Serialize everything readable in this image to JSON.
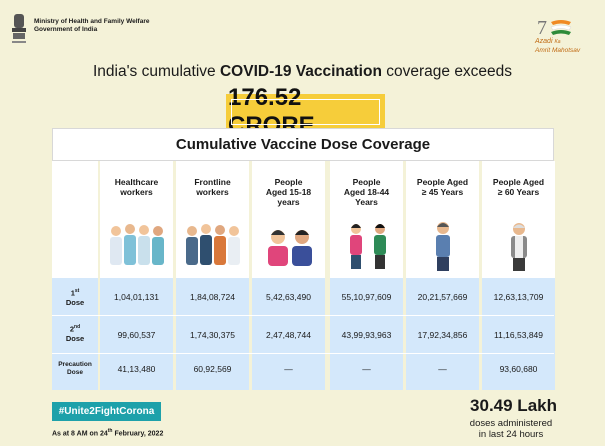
{
  "header": {
    "ministry_line1": "Ministry of Health and Family Welfare",
    "ministry_line2": "Government of India",
    "azadi_line1": "Azadi",
    "azadi_line2": "Ka",
    "azadi_line3": "Amrit Mahotsav"
  },
  "headline": {
    "prefix": "India's cumulative ",
    "bold": "COVID-19 Vaccination",
    "suffix": " coverage exceeds"
  },
  "total": "176.52 CRORE",
  "table": {
    "title": "Cumulative Vaccine Dose Coverage",
    "row_labels": {
      "first": "1",
      "first_sup": "st",
      "second": "2",
      "second_sup": "nd",
      "dose_word": "Dose",
      "precaution": "Precaution",
      "precaution_dose": "Dose"
    },
    "columns": [
      {
        "line1": "Healthcare",
        "line2": "workers",
        "line3": "",
        "first": "1,04,01,131",
        "second": "99,60,537",
        "precaution": "41,13,480"
      },
      {
        "line1": "Frontline",
        "line2": "workers",
        "line3": "",
        "first": "1,84,08,724",
        "second": "1,74,30,375",
        "precaution": "60,92,569"
      },
      {
        "line1": "People",
        "line2": "Aged 15-18",
        "line3": "years",
        "first": "5,42,63,490",
        "second": "2,47,48,744",
        "precaution": "—"
      },
      {
        "line1": "People",
        "line2": "Aged 18-44",
        "line3": "Years",
        "first": "55,10,97,609",
        "second": "43,99,93,963",
        "precaution": "—"
      },
      {
        "line1": "People Aged",
        "line2": "≥ 45 Years",
        "line3": "",
        "first": "20,21,57,669",
        "second": "17,92,34,856",
        "precaution": "—"
      },
      {
        "line1": "People Aged",
        "line2": "≥ 60 Years",
        "line3": "",
        "first": "12,63,13,709",
        "second": "11,16,53,849",
        "precaution": "93,60,680"
      }
    ]
  },
  "footer": {
    "hashtag": "#Unite2FightCorona",
    "as_at_prefix": "As at 8 AM on 24",
    "as_at_sup": "th",
    "as_at_suffix": " February, 2022",
    "lakh": "30.49 Lakh",
    "doses_line1": "doses administered",
    "doses_line2": "in last 24 hours"
  },
  "colors": {
    "background": "#f4f2d8",
    "highlight": "#f6cd3a",
    "table_blue": "#d4e8fb",
    "hashtag_teal": "#1da1aa"
  }
}
